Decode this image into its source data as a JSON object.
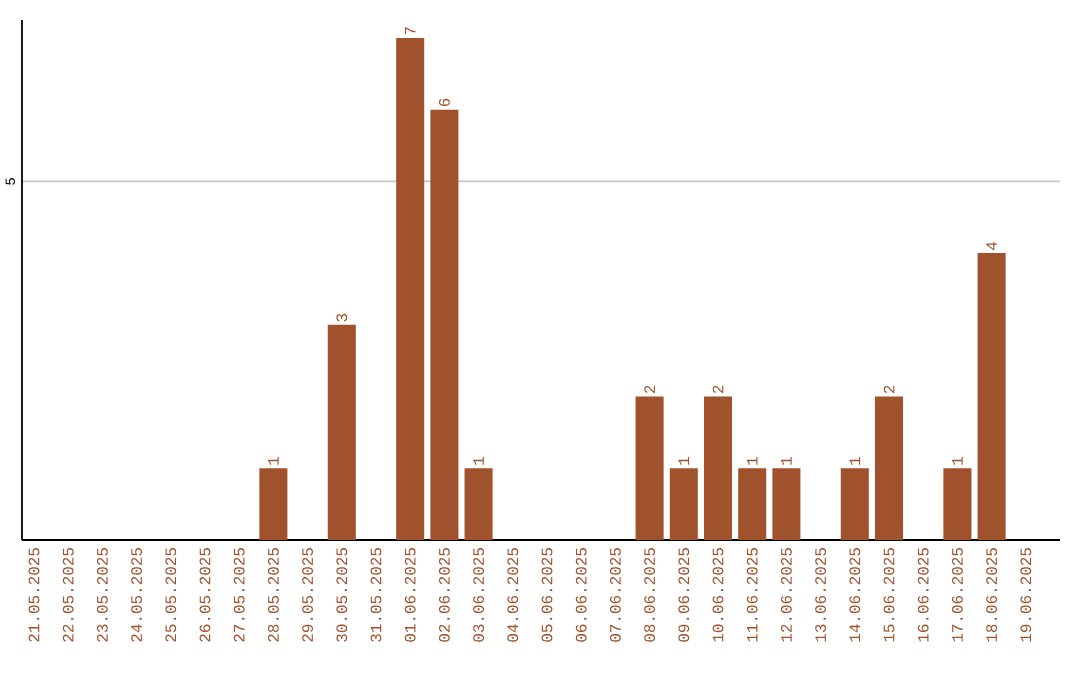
{
  "chart_data": {
    "type": "bar",
    "categories": [
      "21.05.2025",
      "22.05.2025",
      "23.05.2025",
      "24.05.2025",
      "25.05.2025",
      "26.05.2025",
      "27.05.2025",
      "28.05.2025",
      "29.05.2025",
      "30.05.2025",
      "31.05.2025",
      "01.06.2025",
      "02.06.2025",
      "03.06.2025",
      "04.06.2025",
      "05.06.2025",
      "06.06.2025",
      "07.06.2025",
      "08.06.2025",
      "09.06.2025",
      "10.06.2025",
      "11.06.2025",
      "12.06.2025",
      "13.06.2025",
      "14.06.2025",
      "15.06.2025",
      "16.06.2025",
      "17.06.2025",
      "18.06.2025",
      "19.06.2025"
    ],
    "values": [
      0,
      0,
      0,
      0,
      0,
      0,
      0,
      1,
      0,
      3,
      0,
      7,
      6,
      1,
      0,
      0,
      0,
      0,
      2,
      1,
      2,
      1,
      1,
      0,
      1,
      2,
      0,
      1,
      4,
      0
    ],
    "value_labels": [
      null,
      null,
      null,
      null,
      null,
      null,
      null,
      "1",
      null,
      "3",
      null,
      "7",
      "6",
      "1",
      null,
      null,
      null,
      null,
      "2",
      "1",
      "2",
      "1",
      "1",
      null,
      "1",
      "2",
      null,
      "1",
      "4",
      null
    ],
    "color": "#a0522d",
    "ylim": [
      0,
      7.25
    ],
    "yticks": [
      5
    ],
    "grid": "y"
  }
}
